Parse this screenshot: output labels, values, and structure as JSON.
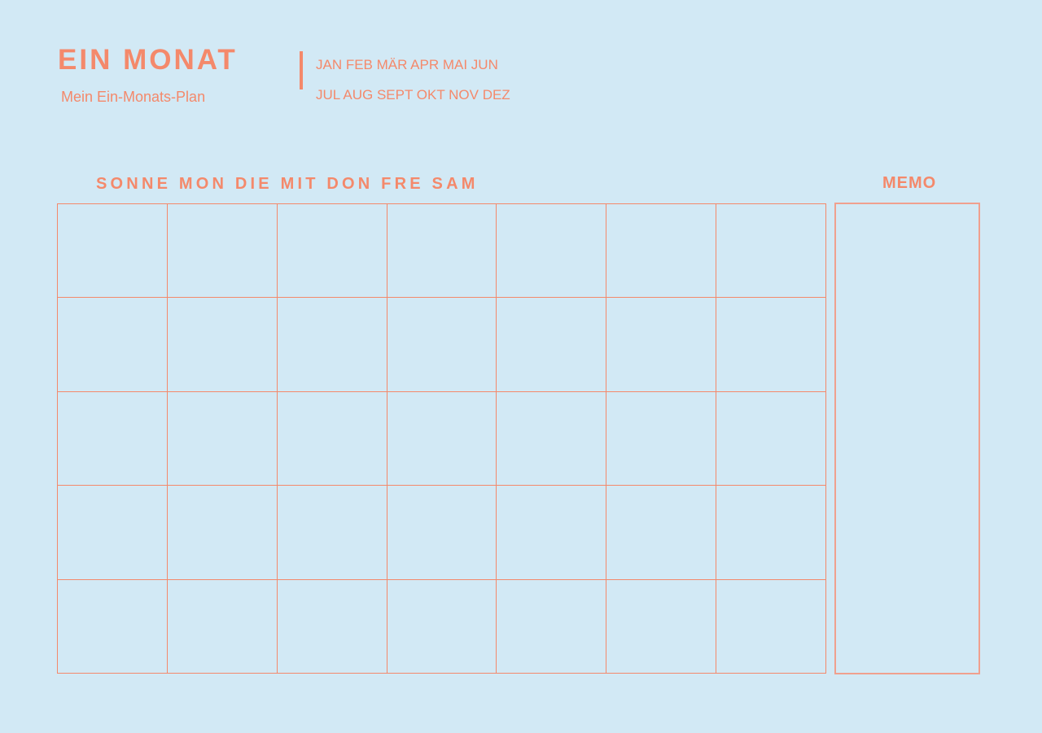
{
  "header": {
    "title": "EIN MONAT",
    "subtitle": "Mein Ein-Monats-Plan",
    "months_row1": "JAN FEB MÄR APR MAI JUN",
    "months_row2": "JUL AUG SEPT OKT NOV DEZ"
  },
  "calendar": {
    "weekdays": "SONNE MON DIE MIT DON FRE SAM",
    "columns": 7,
    "rows": 5
  },
  "memo": {
    "label": "MEMO"
  },
  "colors": {
    "accent": "#f4896b",
    "background": "#d2e9f5"
  }
}
